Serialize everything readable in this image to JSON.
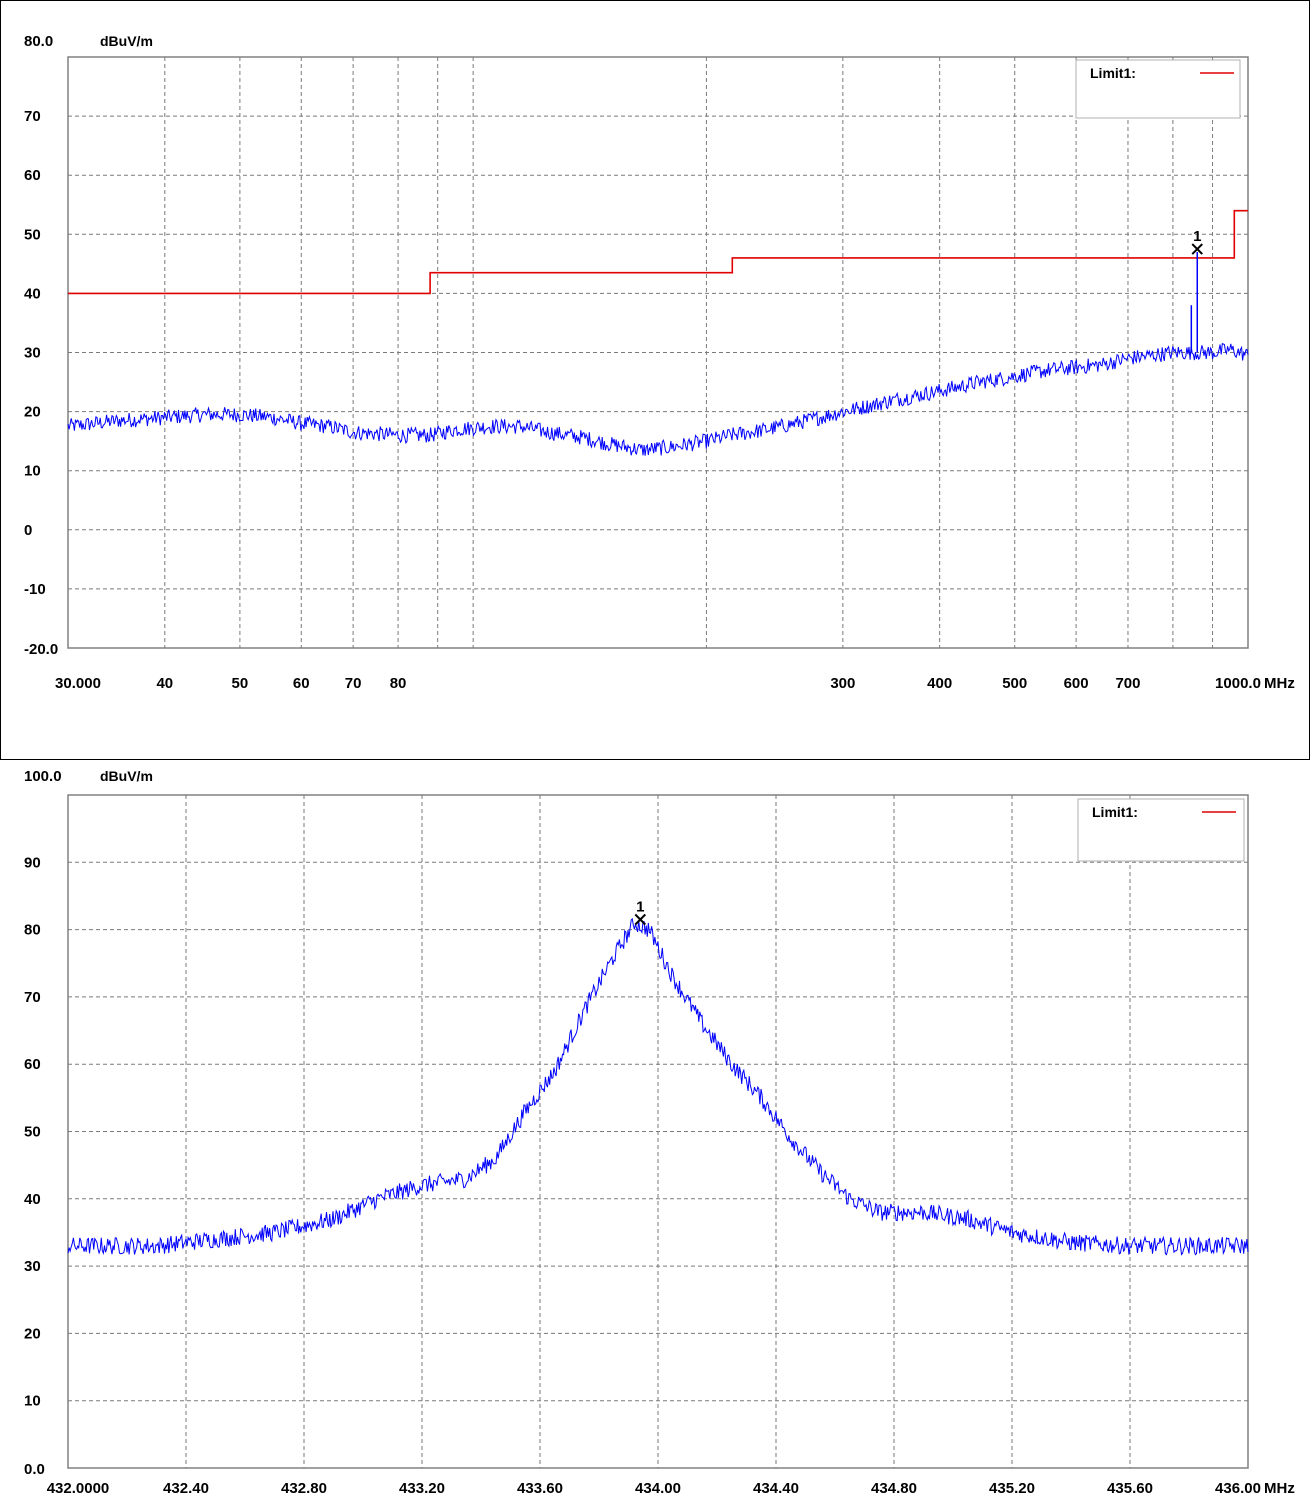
{
  "charts": [
    {
      "id": "top",
      "y_top_label": "80.0",
      "unit_label": "dBuV/m",
      "x_unit": "MHz",
      "legend_label": "Limit1:",
      "marker_label": "1"
    },
    {
      "id": "bottom",
      "y_top_label": "100.0",
      "unit_label": "dBuV/m",
      "x_unit": "MHz",
      "legend_label": "Limit1:",
      "marker_label": "1"
    }
  ],
  "chart_data": [
    {
      "type": "line",
      "x_scale": "log",
      "xlim": [
        30,
        1000
      ],
      "ylim": [
        -20,
        80
      ],
      "y_ticks": [
        70,
        60,
        50,
        40,
        30,
        20,
        10,
        0,
        -10
      ],
      "y_tick_labels": [
        "70",
        "60",
        "50",
        "40",
        "30",
        "20",
        "10",
        "0",
        "-10"
      ],
      "y_bottom_label": "-20.0",
      "x_tick_labels": [
        {
          "value": 30,
          "label": "30.000"
        },
        {
          "value": 40,
          "label": "40"
        },
        {
          "value": 50,
          "label": "50"
        },
        {
          "value": 60,
          "label": "60"
        },
        {
          "value": 70,
          "label": "70"
        },
        {
          "value": 80,
          "label": "80"
        },
        {
          "value": 300,
          "label": "300"
        },
        {
          "value": 400,
          "label": "400"
        },
        {
          "value": 500,
          "label": "500"
        },
        {
          "value": 600,
          "label": "600"
        },
        {
          "value": 700,
          "label": "700"
        },
        {
          "value": 1000,
          "label": "1000.0"
        }
      ],
      "x_gridlines": [
        40,
        50,
        60,
        70,
        80,
        90,
        100,
        200,
        300,
        400,
        500,
        600,
        700,
        800,
        900
      ],
      "grid": true,
      "legend_position": "top-right",
      "series": [
        {
          "name": "Limit1",
          "color": "#e00000",
          "x": [
            30,
            88,
            88,
            216,
            216,
            960,
            960,
            1000
          ],
          "y": [
            40,
            40,
            43.5,
            43.5,
            46,
            46,
            54,
            54
          ]
        },
        {
          "color": "#0000ff",
          "x": [
            30,
            35,
            40,
            45,
            50,
            55,
            60,
            65,
            70,
            80,
            88,
            95,
            105,
            115,
            125,
            140,
            150,
            165,
            180,
            200,
            215,
            240,
            260,
            300,
            350,
            400,
            450,
            500,
            550,
            600,
            650,
            700,
            750,
            800,
            860,
            900,
            950,
            1000
          ],
          "y": [
            17.5,
            18.5,
            19,
            19.5,
            19.5,
            19,
            18,
            17.5,
            16.5,
            16,
            16,
            17,
            17.5,
            17.5,
            16.5,
            15.5,
            14.5,
            13.5,
            14,
            15,
            16,
            17,
            18,
            20,
            22,
            23.5,
            25,
            26,
            27,
            27.5,
            28,
            29,
            29.5,
            30,
            30,
            30,
            30.5,
            29.5
          ]
        }
      ],
      "spikes": [
        {
          "x": 845,
          "y": 38
        },
        {
          "x": 860,
          "y": 47
        }
      ],
      "marker": {
        "x": 860,
        "y": 47.5,
        "label": "1"
      }
    },
    {
      "type": "line",
      "x_scale": "linear",
      "xlim": [
        432.0,
        436.0
      ],
      "ylim": [
        0,
        100
      ],
      "y_ticks": [
        90,
        80,
        70,
        60,
        50,
        40,
        30,
        20,
        10
      ],
      "y_tick_labels": [
        "90",
        "80",
        "70",
        "60",
        "50",
        "40",
        "30",
        "20",
        "10"
      ],
      "y_bottom_label": "0.0",
      "x_tick_labels": [
        {
          "value": 432.0,
          "label": "432.0000"
        },
        {
          "value": 432.4,
          "label": "432.40"
        },
        {
          "value": 432.8,
          "label": "432.80"
        },
        {
          "value": 433.2,
          "label": "433.20"
        },
        {
          "value": 433.6,
          "label": "433.60"
        },
        {
          "value": 434.0,
          "label": "434.00"
        },
        {
          "value": 434.4,
          "label": "434.40"
        },
        {
          "value": 434.8,
          "label": "434.80"
        },
        {
          "value": 435.2,
          "label": "435.20"
        },
        {
          "value": 435.6,
          "label": "435.60"
        },
        {
          "value": 436.0,
          "label": "436.00"
        }
      ],
      "x_gridlines": [
        432.4,
        432.8,
        433.2,
        433.6,
        434.0,
        434.4,
        434.8,
        435.2,
        435.6
      ],
      "grid": true,
      "legend_position": "top-right",
      "series": [
        {
          "color": "#0000ff",
          "x": [
            432.0,
            432.3,
            432.5,
            432.7,
            432.9,
            433.05,
            433.2,
            433.35,
            433.45,
            433.55,
            433.65,
            433.75,
            433.85,
            433.92,
            433.97,
            434.05,
            434.15,
            434.25,
            434.35,
            434.45,
            434.55,
            434.65,
            434.75,
            434.9,
            435.05,
            435.2,
            435.4,
            435.6,
            435.8,
            436.0
          ],
          "y": [
            33,
            33,
            34,
            35,
            37,
            40,
            42,
            43,
            46,
            53,
            59,
            68,
            76,
            81,
            80,
            73,
            66,
            60,
            55,
            49,
            44,
            40,
            38,
            38,
            37,
            35,
            33.5,
            33,
            33,
            33
          ]
        }
      ],
      "marker": {
        "x": 433.94,
        "y": 81.5,
        "label": "1"
      }
    }
  ]
}
